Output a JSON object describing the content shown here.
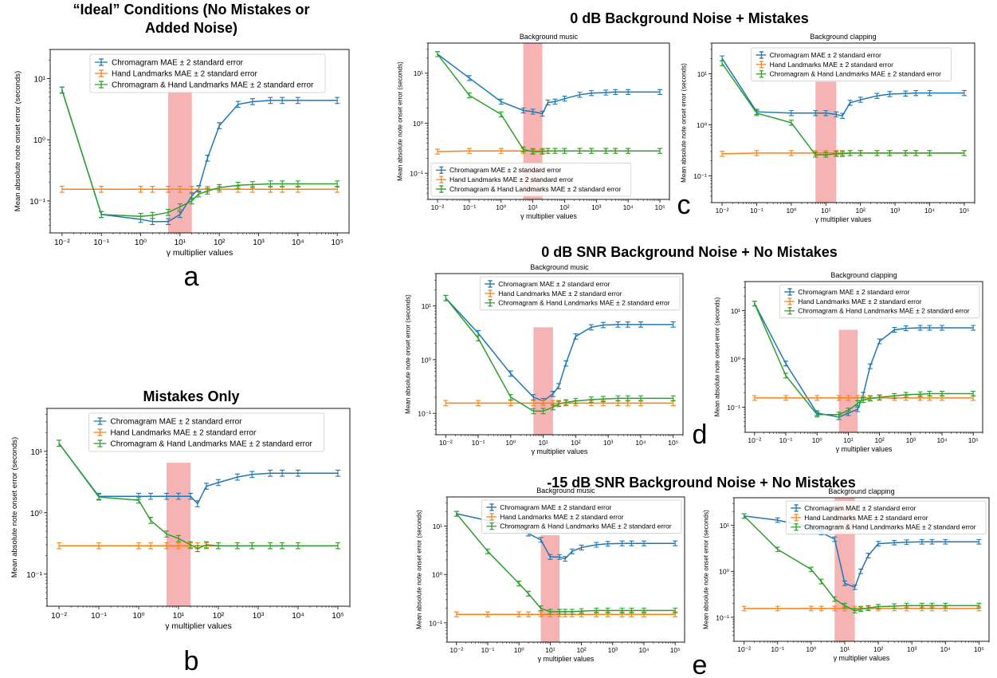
{
  "section_titles": {
    "a_line1": "“Ideal” Conditions (No Mistakes or",
    "a_line2": "Added Noise)",
    "b": "Mistakes Only",
    "c": "0 dB Background Noise + Mistakes",
    "d": "0 dB SNR Background Noise + No Mistakes",
    "e": "-15 dB SNR Background Noise + No Mistakes"
  },
  "panel_letters": {
    "a": "a",
    "b": "b",
    "c": "c",
    "d": "d",
    "e": "e"
  },
  "colors": {
    "chromagram": "#1f77b4",
    "hand": "#ff7f0e",
    "combined": "#2ca02c",
    "highlight": "#f08080"
  },
  "chart_data": [
    {
      "id": "a",
      "type": "line",
      "title": "",
      "xlabel": "γ multiplier values",
      "ylabel": "Mean absolute note onset error (seconds)",
      "xscale": "log",
      "yscale": "log",
      "xlim": [
        0.005,
        200000
      ],
      "ylim": [
        0.03,
        30
      ],
      "highlight_x": [
        5,
        20
      ],
      "highlight_ymax": 6.5,
      "legend": "upper-center",
      "x": [
        0.01,
        0.1,
        1,
        2,
        5,
        10,
        20,
        30,
        50,
        100,
        300,
        700,
        2000,
        4000,
        10000,
        100000
      ],
      "series": [
        {
          "name": "Chromagram MAE ± 2 standard error",
          "color": "#1f77b4",
          "values": [
            6.5,
            0.06,
            0.05,
            0.046,
            0.046,
            0.06,
            0.12,
            0.16,
            0.5,
            1.7,
            3.8,
            4.2,
            4.4,
            4.4,
            4.4,
            4.4
          ]
        },
        {
          "name": "Hand Landmarks MAE ± 2 standard error",
          "color": "#ff7f0e",
          "values": [
            0.155,
            0.155,
            0.155,
            0.155,
            0.155,
            0.155,
            0.155,
            0.155,
            0.155,
            0.155,
            0.155,
            0.155,
            0.155,
            0.155,
            0.155,
            0.155
          ]
        },
        {
          "name": "Chromagram & Hand Landmarks MAE ± 2 standard error",
          "color": "#2ca02c",
          "values": [
            6.5,
            0.06,
            0.056,
            0.058,
            0.065,
            0.08,
            0.1,
            0.13,
            0.145,
            0.165,
            0.18,
            0.185,
            0.19,
            0.19,
            0.19,
            0.19
          ]
        }
      ]
    },
    {
      "id": "b",
      "type": "line",
      "title": "",
      "xlabel": "γ multiplier values",
      "ylabel": "Mean absolute note onset error (seconds)",
      "xscale": "log",
      "yscale": "log",
      "xlim": [
        0.005,
        200000
      ],
      "ylim": [
        0.03,
        50
      ],
      "highlight_x": [
        5,
        20
      ],
      "highlight_ymax": 6.5,
      "legend": "upper-center",
      "x": [
        0.01,
        0.1,
        1,
        2,
        5,
        10,
        20,
        30,
        50,
        100,
        300,
        700,
        2000,
        4000,
        10000,
        100000
      ],
      "series": [
        {
          "name": "Chromagram MAE ± 2 standard error",
          "color": "#1f77b4",
          "values": [
            13.5,
            1.85,
            1.85,
            1.85,
            1.85,
            1.85,
            1.85,
            1.4,
            2.7,
            3.1,
            3.8,
            4.2,
            4.4,
            4.4,
            4.4,
            4.4
          ]
        },
        {
          "name": "Hand Landmarks MAE ± 2 standard error",
          "color": "#ff7f0e",
          "values": [
            0.29,
            0.29,
            0.29,
            0.29,
            0.29,
            0.29,
            0.29,
            0.29,
            0.29,
            0.29,
            0.29,
            0.29,
            0.29,
            0.29,
            0.29,
            0.29
          ]
        },
        {
          "name": "Chromagram & Hand Landmarks MAE ± 2 standard error",
          "color": "#2ca02c",
          "values": [
            13.5,
            1.8,
            1.6,
            0.75,
            0.45,
            0.38,
            0.3,
            0.26,
            0.3,
            0.29,
            0.29,
            0.29,
            0.29,
            0.29,
            0.29,
            0.29
          ]
        }
      ]
    },
    {
      "id": "c1",
      "type": "line",
      "title": "Background music",
      "xlabel": "γ multiplier values",
      "ylabel": "Mean absolute note onset error (seconds)",
      "xscale": "log",
      "yscale": "log",
      "xlim": [
        0.005,
        200000
      ],
      "ylim": [
        0.03,
        40
      ],
      "highlight_x": [
        5,
        20
      ],
      "highlight_ymax": 40,
      "legend": "lower-center",
      "x": [
        0.01,
        0.1,
        1,
        5,
        10,
        20,
        30,
        50,
        100,
        300,
        700,
        2000,
        4000,
        10000,
        100000
      ],
      "series": [
        {
          "name": "Chromagram MAE ± 2 standard error",
          "color": "#1f77b4",
          "values": [
            24,
            8,
            2.7,
            1.8,
            1.7,
            1.55,
            2.6,
            2.7,
            3.1,
            3.7,
            4.0,
            4.1,
            4.2,
            4.2,
            4.2
          ]
        },
        {
          "name": "Hand Landmarks MAE ± 2 standard error",
          "color": "#ff7f0e",
          "values": [
            0.27,
            0.28,
            0.28,
            0.28,
            0.28,
            0.28,
            0.28,
            0.28,
            0.28,
            0.28,
            0.28,
            0.28,
            0.28,
            0.28,
            0.28
          ]
        },
        {
          "name": "Chromagram & Hand Landmarks MAE ± 2 standard error",
          "color": "#2ca02c",
          "values": [
            24,
            3.6,
            1.5,
            0.3,
            0.27,
            0.27,
            0.28,
            0.28,
            0.28,
            0.28,
            0.28,
            0.28,
            0.28,
            0.28,
            0.28
          ]
        }
      ]
    },
    {
      "id": "c2",
      "type": "line",
      "title": "Background clapping",
      "xlabel": "γ multiplier values",
      "ylabel": "Mean absolute note onset error (seconds)",
      "xscale": "log",
      "yscale": "log",
      "xlim": [
        0.005,
        200000
      ],
      "ylim": [
        0.03,
        40
      ],
      "highlight_x": [
        5,
        20
      ],
      "highlight_ymax": 7,
      "legend": "upper-center",
      "x": [
        0.01,
        0.1,
        1,
        5,
        10,
        20,
        30,
        50,
        100,
        300,
        700,
        2000,
        4000,
        10000,
        100000
      ],
      "series": [
        {
          "name": "Chromagram MAE ± 2 standard error",
          "color": "#1f77b4",
          "values": [
            20,
            1.8,
            1.7,
            1.7,
            1.7,
            1.6,
            1.5,
            2.7,
            3.1,
            3.7,
            4.0,
            4.1,
            4.2,
            4.2,
            4.2
          ]
        },
        {
          "name": "Hand Landmarks MAE ± 2 standard error",
          "color": "#ff7f0e",
          "values": [
            0.27,
            0.28,
            0.28,
            0.28,
            0.28,
            0.28,
            0.28,
            0.28,
            0.28,
            0.28,
            0.28,
            0.28,
            0.28,
            0.28,
            0.28
          ]
        },
        {
          "name": "Chromagram & Hand Landmarks MAE ± 2 standard error",
          "color": "#2ca02c",
          "values": [
            16,
            1.7,
            1.1,
            0.26,
            0.26,
            0.27,
            0.27,
            0.28,
            0.28,
            0.28,
            0.28,
            0.28,
            0.28,
            0.28,
            0.28
          ]
        }
      ]
    },
    {
      "id": "d1",
      "type": "line",
      "title": "Background music",
      "xlabel": "γ multiplier values",
      "ylabel": "Mean absolute note onset error (seconds)",
      "xscale": "log",
      "yscale": "log",
      "xlim": [
        0.005,
        200000
      ],
      "ylim": [
        0.04,
        40
      ],
      "highlight_x": [
        5,
        20
      ],
      "highlight_ymax": 4,
      "legend": "upper-right",
      "x": [
        0.01,
        0.1,
        1,
        5,
        10,
        20,
        30,
        50,
        100,
        300,
        700,
        2000,
        4000,
        10000,
        100000
      ],
      "series": [
        {
          "name": "Chromagram MAE ± 2 standard error",
          "color": "#1f77b4",
          "values": [
            14,
            3.1,
            0.55,
            0.2,
            0.17,
            0.23,
            0.32,
            0.85,
            2.7,
            4.0,
            4.4,
            4.5,
            4.5,
            4.5,
            4.5
          ]
        },
        {
          "name": "Hand Landmarks MAE ± 2 standard error",
          "color": "#ff7f0e",
          "values": [
            0.155,
            0.155,
            0.155,
            0.155,
            0.155,
            0.155,
            0.155,
            0.155,
            0.155,
            0.155,
            0.155,
            0.155,
            0.155,
            0.155,
            0.155
          ]
        },
        {
          "name": "Chromagram & Hand Landmarks MAE ± 2 standard error",
          "color": "#2ca02c",
          "values": [
            14,
            2.5,
            0.2,
            0.11,
            0.11,
            0.13,
            0.15,
            0.16,
            0.17,
            0.18,
            0.185,
            0.19,
            0.19,
            0.19,
            0.19
          ]
        }
      ]
    },
    {
      "id": "d2",
      "type": "line",
      "title": "Background clapping",
      "xlabel": "γ multiplier values",
      "ylabel": "Mean absolute note onset error (seconds)",
      "xscale": "log",
      "yscale": "log",
      "xlim": [
        0.005,
        200000
      ],
      "ylim": [
        0.03,
        40
      ],
      "highlight_x": [
        5,
        20
      ],
      "highlight_ymax": 4,
      "legend": "upper-right",
      "x": [
        0.01,
        0.1,
        1,
        5,
        10,
        20,
        30,
        50,
        100,
        300,
        700,
        2000,
        4000,
        10000,
        100000
      ],
      "series": [
        {
          "name": "Chromagram MAE ± 2 standard error",
          "color": "#1f77b4",
          "values": [
            14,
            0.8,
            0.075,
            0.062,
            0.075,
            0.09,
            0.18,
            0.7,
            2.3,
            4.0,
            4.3,
            4.4,
            4.4,
            4.4,
            4.4
          ]
        },
        {
          "name": "Hand Landmarks MAE ± 2 standard error",
          "color": "#ff7f0e",
          "values": [
            0.155,
            0.155,
            0.155,
            0.155,
            0.155,
            0.155,
            0.155,
            0.155,
            0.155,
            0.155,
            0.155,
            0.155,
            0.155,
            0.155,
            0.155
          ]
        },
        {
          "name": "Chromagram & Hand Landmarks MAE ± 2 standard error",
          "color": "#2ca02c",
          "values": [
            14,
            0.45,
            0.07,
            0.07,
            0.085,
            0.12,
            0.14,
            0.15,
            0.16,
            0.17,
            0.18,
            0.185,
            0.19,
            0.19,
            0.19
          ]
        }
      ]
    },
    {
      "id": "e1",
      "type": "line",
      "title": "Background music",
      "xlabel": "γ multiplier values",
      "ylabel": "Mean absolute note onset error (seconds)",
      "xscale": "log",
      "yscale": "log",
      "xlim": [
        0.005,
        200000
      ],
      "ylim": [
        0.04,
        40
      ],
      "highlight_x": [
        5,
        20
      ],
      "highlight_ymax": 6.5,
      "legend": "upper-right",
      "x": [
        0.01,
        0.1,
        1,
        2,
        5,
        10,
        20,
        30,
        50,
        100,
        300,
        700,
        2000,
        4000,
        10000,
        100000
      ],
      "series": [
        {
          "name": "Chromagram MAE ± 2 standard error",
          "color": "#1f77b4",
          "values": [
            18,
            13,
            9,
            7,
            5.2,
            2.3,
            2.3,
            2.1,
            3.0,
            3.6,
            4.1,
            4.3,
            4.4,
            4.4,
            4.4,
            4.4
          ]
        },
        {
          "name": "Hand Landmarks MAE ± 2 standard error",
          "color": "#ff7f0e",
          "values": [
            0.15,
            0.15,
            0.15,
            0.15,
            0.15,
            0.15,
            0.15,
            0.15,
            0.15,
            0.15,
            0.15,
            0.15,
            0.15,
            0.15,
            0.15,
            0.15
          ]
        },
        {
          "name": "Chromagram & Hand Landmarks MAE ± 2 standard error",
          "color": "#2ca02c",
          "values": [
            18,
            3,
            0.65,
            0.4,
            0.2,
            0.17,
            0.17,
            0.17,
            0.17,
            0.175,
            0.18,
            0.18,
            0.18,
            0.18,
            0.18,
            0.18
          ]
        }
      ]
    },
    {
      "id": "e2",
      "type": "line",
      "title": "Background clapping",
      "xlabel": "γ multiplier values",
      "ylabel": "Mean absolute note onset error (seconds)",
      "xscale": "log",
      "yscale": "log",
      "xlim": [
        0.005,
        200000
      ],
      "ylim": [
        0.03,
        40
      ],
      "highlight_x": [
        5,
        20
      ],
      "highlight_ymax": 40,
      "legend": "upper-right",
      "x": [
        0.01,
        0.1,
        1,
        2,
        5,
        10,
        20,
        30,
        50,
        100,
        300,
        700,
        2000,
        4000,
        10000,
        100000
      ],
      "series": [
        {
          "name": "Chromagram MAE ± 2 standard error",
          "color": "#1f77b4",
          "values": [
            16,
            13,
            9,
            7,
            5,
            0.55,
            0.45,
            1.0,
            2.2,
            4.0,
            4.2,
            4.3,
            4.4,
            4.4,
            4.4,
            4.4
          ]
        },
        {
          "name": "Hand Landmarks MAE ± 2 standard error",
          "color": "#ff7f0e",
          "values": [
            0.155,
            0.155,
            0.155,
            0.155,
            0.155,
            0.155,
            0.155,
            0.155,
            0.155,
            0.155,
            0.155,
            0.155,
            0.155,
            0.155,
            0.155,
            0.155
          ]
        },
        {
          "name": "Chromagram & Hand Landmarks MAE ± 2 standard error",
          "color": "#2ca02c",
          "values": [
            16,
            3,
            1.1,
            0.6,
            0.25,
            0.18,
            0.14,
            0.15,
            0.16,
            0.17,
            0.175,
            0.18,
            0.18,
            0.18,
            0.18,
            0.18
          ]
        }
      ]
    }
  ]
}
